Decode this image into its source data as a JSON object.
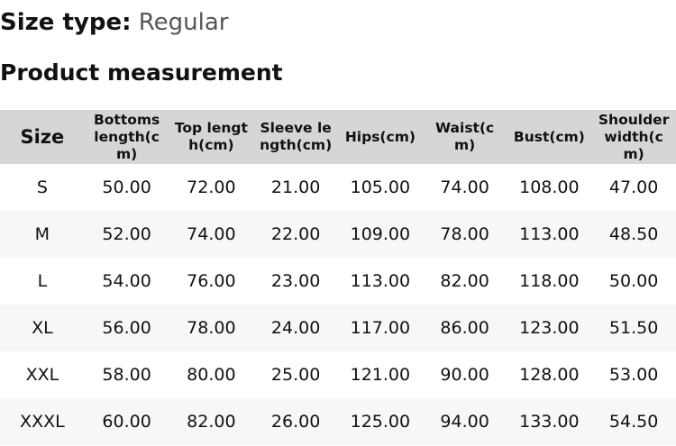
{
  "size_type": {
    "label": "Size type:",
    "value": "Regular"
  },
  "section_title": "Product measurement",
  "table": {
    "headers": [
      "Size",
      "Bottoms length(cm)",
      "Top length(cm)",
      "Sleeve length(cm)",
      "Hips(cm)",
      "Waist(cm)",
      "Bust(cm)",
      "Shoulder width(cm)"
    ],
    "rows": [
      [
        "S",
        "50.00",
        "72.00",
        "21.00",
        "105.00",
        "74.00",
        "108.00",
        "47.00"
      ],
      [
        "M",
        "52.00",
        "74.00",
        "22.00",
        "109.00",
        "78.00",
        "113.00",
        "48.50"
      ],
      [
        "L",
        "54.00",
        "76.00",
        "23.00",
        "113.00",
        "82.00",
        "118.00",
        "50.00"
      ],
      [
        "XL",
        "56.00",
        "78.00",
        "24.00",
        "117.00",
        "86.00",
        "123.00",
        "51.50"
      ],
      [
        "XXL",
        "58.00",
        "80.00",
        "25.00",
        "121.00",
        "90.00",
        "128.00",
        "53.00"
      ],
      [
        "XXXL",
        "60.00",
        "82.00",
        "26.00",
        "125.00",
        "94.00",
        "133.00",
        "54.50"
      ]
    ]
  }
}
